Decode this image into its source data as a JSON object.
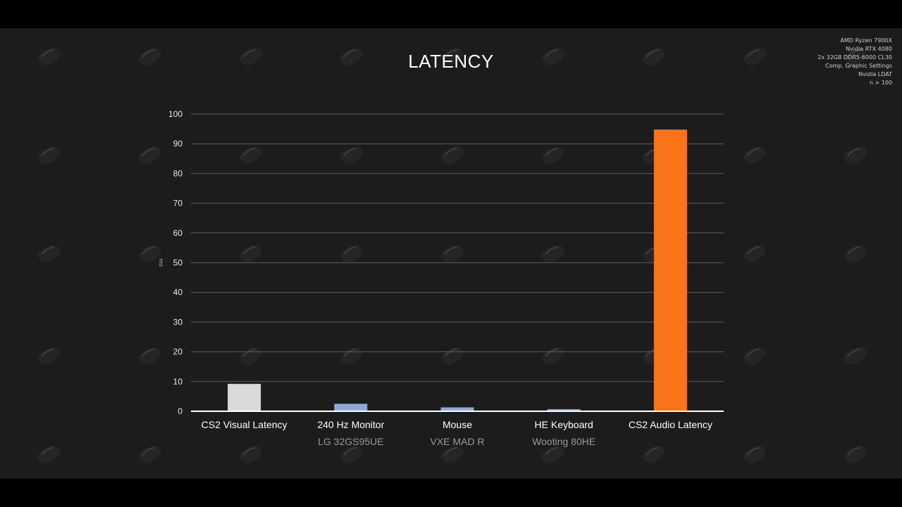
{
  "page": {
    "title": "LATENCY",
    "specs": [
      "AMD Ryzen 7900X",
      "Nvidia RTX 4080",
      "2x 32GB DDR5-6000 CL30",
      "Comp. Graphic Settings",
      "Nvidia LDAT",
      "n > 100"
    ]
  },
  "chart_data": {
    "type": "bar",
    "title": "LATENCY",
    "xlabel": "",
    "ylabel": "ms",
    "ylim": [
      0,
      100
    ],
    "yticks": [
      0,
      10,
      20,
      30,
      40,
      50,
      60,
      70,
      80,
      90,
      100
    ],
    "grid": true,
    "categories": [
      "CS2 Visual Latency",
      "240 Hz Monitor",
      "Mouse",
      "HE Keyboard",
      "CS2 Audio Latency"
    ],
    "subcategories": [
      "",
      "LG 32GS95UE",
      "VXE MAD R",
      "Wooting 80HE",
      ""
    ],
    "values": [
      9.2,
      2.5,
      1.3,
      0.7,
      94.8
    ],
    "colors": [
      "#d9d9d9",
      "#8eaadb",
      "#8eaadb",
      "#8eaadb",
      "#fa7316"
    ]
  }
}
